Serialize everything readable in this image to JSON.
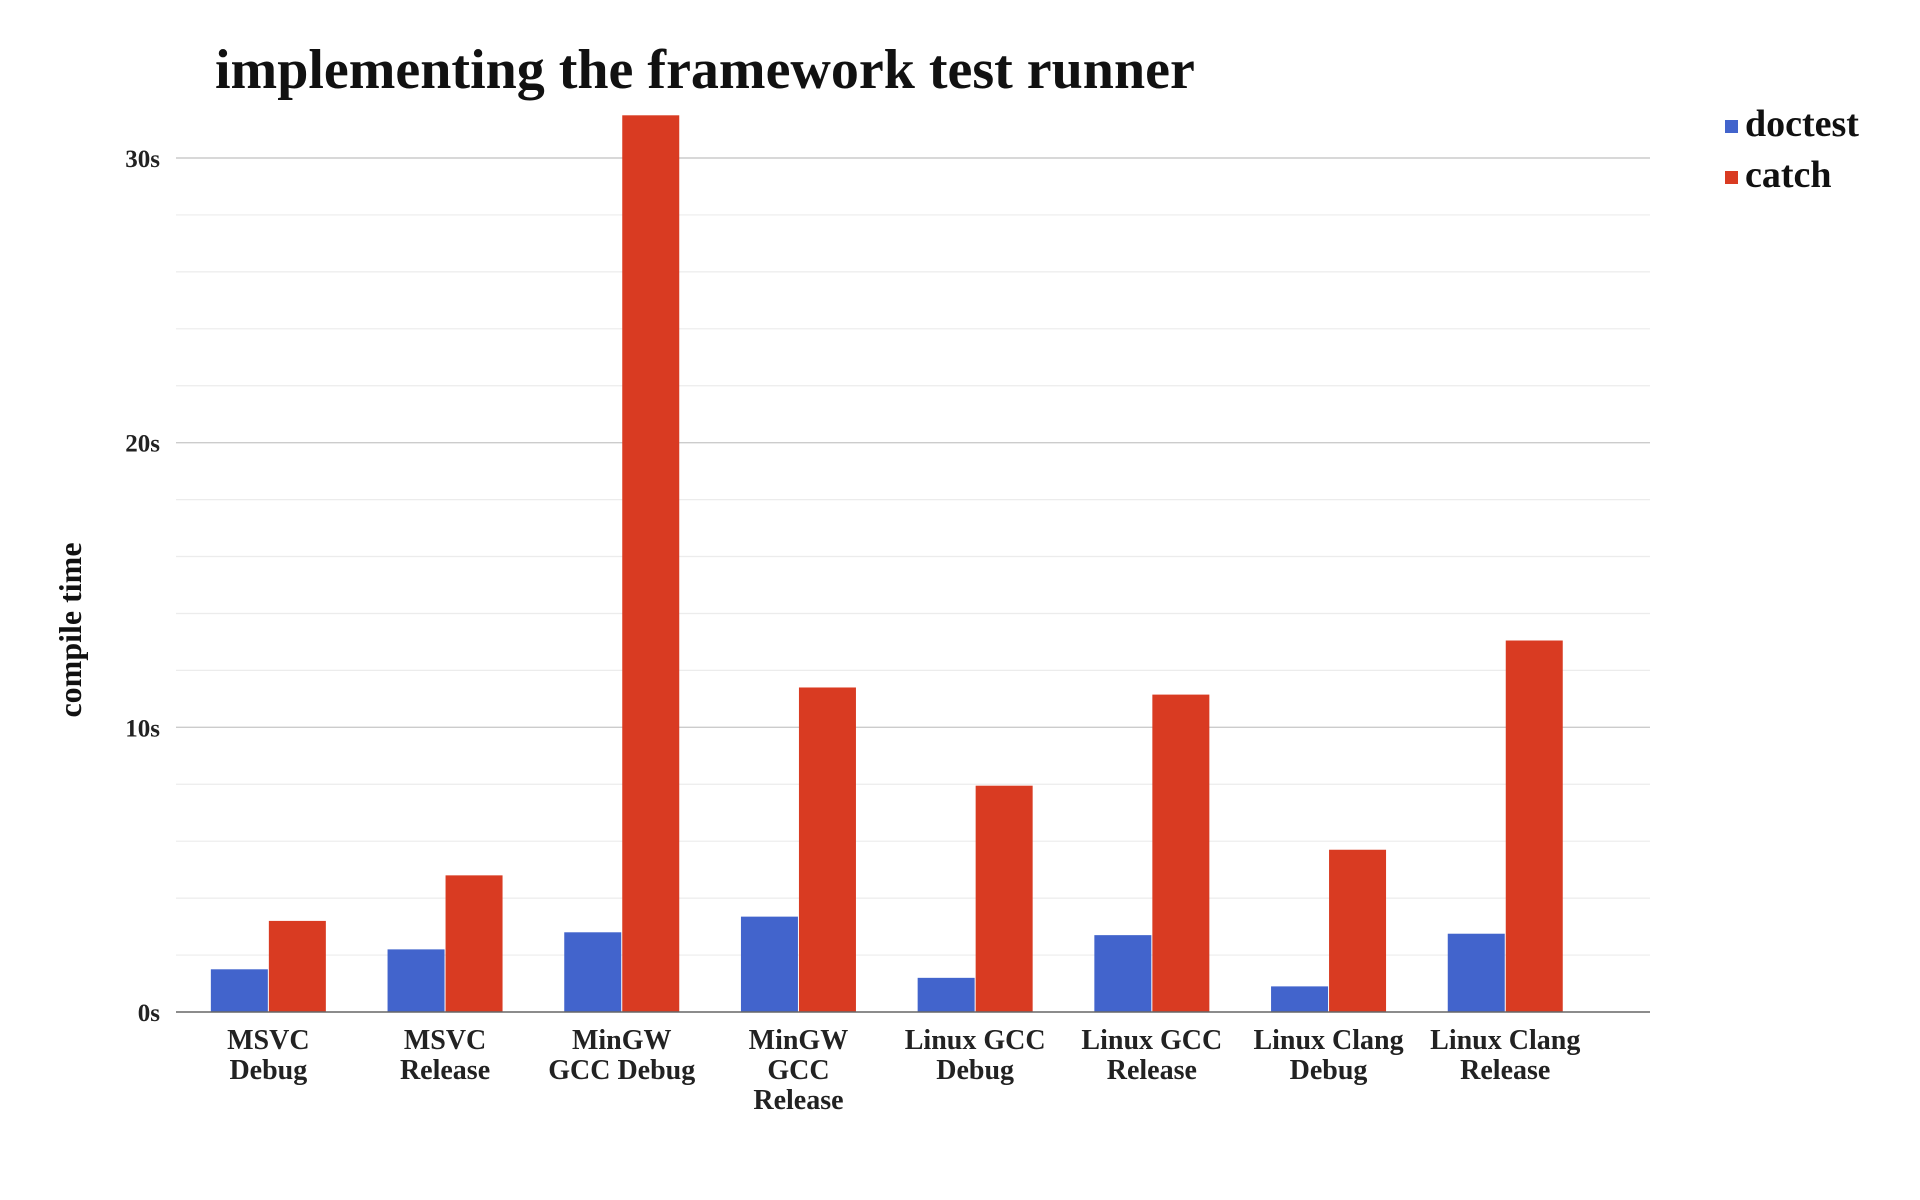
{
  "chart_data": {
    "type": "bar",
    "title": "implementing the framework test runner",
    "xlabel": "",
    "ylabel": "compile time",
    "ylim": [
      0,
      31.5
    ],
    "yticks": [
      0,
      10,
      20,
      30
    ],
    "ytick_labels": [
      "0s",
      "10s",
      "20s",
      "30s"
    ],
    "minor_grid_step": 2,
    "grid": true,
    "legend_position": "top-right",
    "categories": [
      [
        "MSVC",
        "Debug"
      ],
      [
        "MSVC",
        "Release"
      ],
      [
        "MinGW",
        "GCC Debug"
      ],
      [
        "MinGW",
        "GCC",
        "Release"
      ],
      [
        "Linux GCC",
        "Debug"
      ],
      [
        "Linux GCC",
        "Release"
      ],
      [
        "Linux Clang",
        "Debug"
      ],
      [
        "Linux Clang",
        "Release"
      ]
    ],
    "series": [
      {
        "name": "doctest",
        "color": "#4264cc",
        "values": [
          1.5,
          2.2,
          2.8,
          3.35,
          1.2,
          2.7,
          0.9,
          2.75
        ]
      },
      {
        "name": "catch",
        "color": "#d93b22",
        "values": [
          3.2,
          4.8,
          31.5,
          11.4,
          7.95,
          11.15,
          5.7,
          13.05
        ]
      }
    ]
  }
}
